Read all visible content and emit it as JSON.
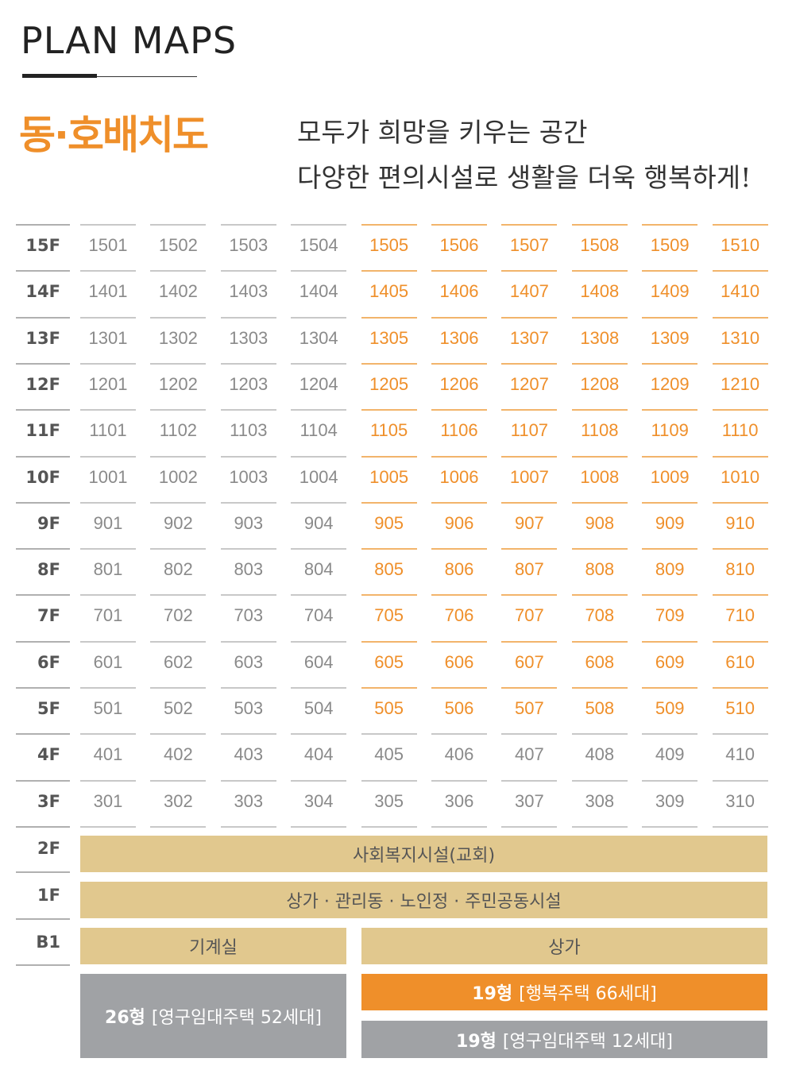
{
  "header": {
    "plan_title": "PLAN MAPS",
    "section_title": "동·호배치도",
    "slogan_line1": "모두가 희망을 키우는 공간",
    "slogan_line2": "다양한 편의시설로 생활을 더욱 행복하게!"
  },
  "colors": {
    "accent_orange": "#ef8f2a",
    "band_tan": "#e1c88e",
    "band_gray": "#a0a2a5"
  },
  "floors": [
    {
      "label": "15F",
      "units": [
        "1501",
        "1502",
        "1503",
        "1504",
        "1505",
        "1506",
        "1507",
        "1508",
        "1509",
        "1510"
      ],
      "highlight": [
        false,
        false,
        false,
        false,
        true,
        true,
        true,
        true,
        true,
        true
      ]
    },
    {
      "label": "14F",
      "units": [
        "1401",
        "1402",
        "1403",
        "1404",
        "1405",
        "1406",
        "1407",
        "1408",
        "1409",
        "1410"
      ],
      "highlight": [
        false,
        false,
        false,
        false,
        true,
        true,
        true,
        true,
        true,
        true
      ]
    },
    {
      "label": "13F",
      "units": [
        "1301",
        "1302",
        "1303",
        "1304",
        "1305",
        "1306",
        "1307",
        "1308",
        "1309",
        "1310"
      ],
      "highlight": [
        false,
        false,
        false,
        false,
        true,
        true,
        true,
        true,
        true,
        true
      ]
    },
    {
      "label": "12F",
      "units": [
        "1201",
        "1202",
        "1203",
        "1204",
        "1205",
        "1206",
        "1207",
        "1208",
        "1209",
        "1210"
      ],
      "highlight": [
        false,
        false,
        false,
        false,
        true,
        true,
        true,
        true,
        true,
        true
      ]
    },
    {
      "label": "11F",
      "units": [
        "1101",
        "1102",
        "1103",
        "1104",
        "1105",
        "1106",
        "1107",
        "1108",
        "1109",
        "1110"
      ],
      "highlight": [
        false,
        false,
        false,
        false,
        true,
        true,
        true,
        true,
        true,
        true
      ]
    },
    {
      "label": "10F",
      "units": [
        "1001",
        "1002",
        "1003",
        "1004",
        "1005",
        "1006",
        "1007",
        "1008",
        "1009",
        "1010"
      ],
      "highlight": [
        false,
        false,
        false,
        false,
        true,
        true,
        true,
        true,
        true,
        true
      ]
    },
    {
      "label": "9F",
      "units": [
        "901",
        "902",
        "903",
        "904",
        "905",
        "906",
        "907",
        "908",
        "909",
        "910"
      ],
      "highlight": [
        false,
        false,
        false,
        false,
        true,
        true,
        true,
        true,
        true,
        true
      ]
    },
    {
      "label": "8F",
      "units": [
        "801",
        "802",
        "803",
        "804",
        "805",
        "806",
        "807",
        "808",
        "809",
        "810"
      ],
      "highlight": [
        false,
        false,
        false,
        false,
        true,
        true,
        true,
        true,
        true,
        true
      ]
    },
    {
      "label": "7F",
      "units": [
        "701",
        "702",
        "703",
        "704",
        "705",
        "706",
        "707",
        "708",
        "709",
        "710"
      ],
      "highlight": [
        false,
        false,
        false,
        false,
        true,
        true,
        true,
        true,
        true,
        true
      ]
    },
    {
      "label": "6F",
      "units": [
        "601",
        "602",
        "603",
        "604",
        "605",
        "606",
        "607",
        "608",
        "609",
        "610"
      ],
      "highlight": [
        false,
        false,
        false,
        false,
        true,
        true,
        true,
        true,
        true,
        true
      ]
    },
    {
      "label": "5F",
      "units": [
        "501",
        "502",
        "503",
        "504",
        "505",
        "506",
        "507",
        "508",
        "509",
        "510"
      ],
      "highlight": [
        false,
        false,
        false,
        false,
        true,
        true,
        true,
        true,
        true,
        true
      ]
    },
    {
      "label": "4F",
      "units": [
        "401",
        "402",
        "403",
        "404",
        "405",
        "406",
        "407",
        "408",
        "409",
        "410"
      ],
      "highlight": [
        false,
        false,
        false,
        false,
        false,
        false,
        false,
        false,
        false,
        false
      ]
    },
    {
      "label": "3F",
      "units": [
        "301",
        "302",
        "303",
        "304",
        "305",
        "306",
        "307",
        "308",
        "309",
        "310"
      ],
      "highlight": [
        false,
        false,
        false,
        false,
        false,
        false,
        false,
        false,
        false,
        false
      ]
    }
  ],
  "lower_floors": {
    "f2_label": "2F",
    "f2_band": "사회복지시설(교회)",
    "f1_label": "1F",
    "f1_band": "상가 · 관리동 · 노인정 · 주민공동시설",
    "b1_label": "B1",
    "b1_left": "기계실",
    "b1_right": "상가"
  },
  "legend": {
    "type26_bold": "26형",
    "type26_text": "[영구임대주택 52세대]",
    "type19a_bold": "19형",
    "type19a_text": "[행복주택 66세대]",
    "type19b_bold": "19형",
    "type19b_text": "[영구임대주택 12세대]"
  }
}
